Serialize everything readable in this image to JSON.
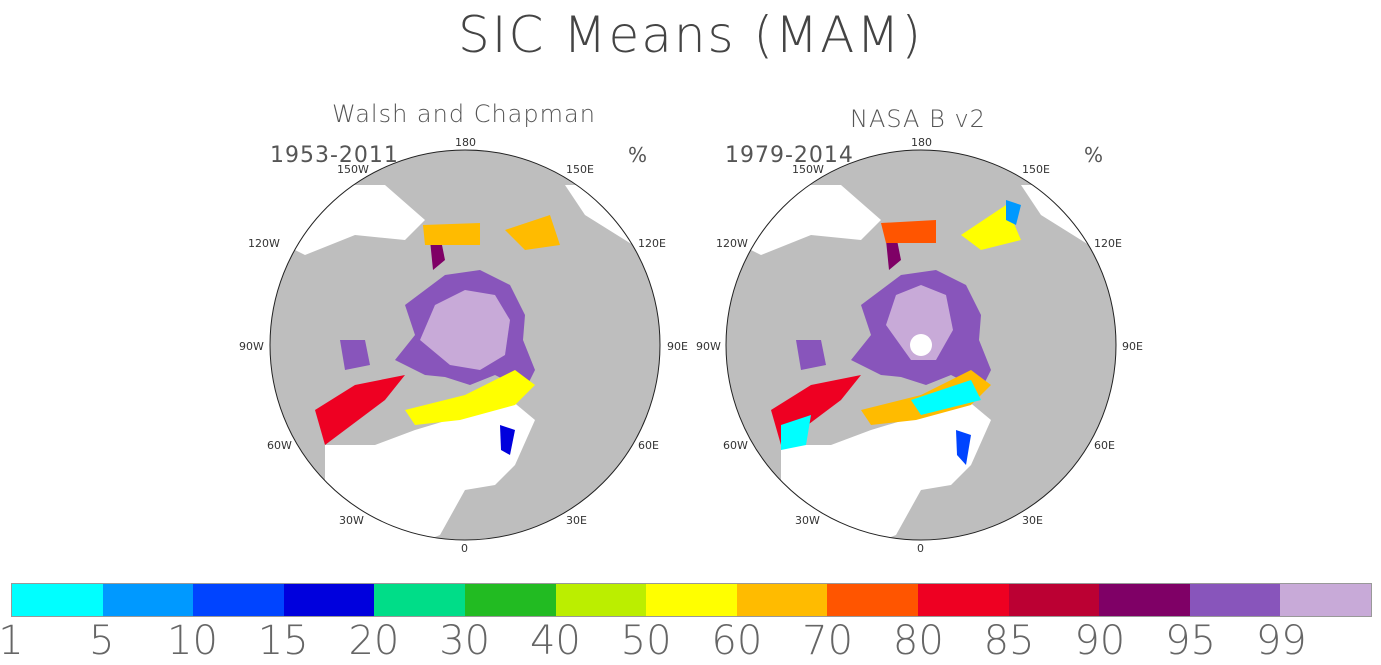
{
  "title": "SIC Means (MAM)",
  "panels": [
    {
      "name": "Walsh and Chapman",
      "period": "1953-2011",
      "unit": "%"
    },
    {
      "name": "NASA B v2",
      "period": "1979-2014",
      "unit": "%"
    }
  ],
  "longitude_labels": [
    "180",
    "150E",
    "120E",
    "90E",
    "60E",
    "30E",
    "0",
    "30W",
    "60W",
    "90W",
    "120W",
    "150W"
  ],
  "colorbar": {
    "labels": [
      "1",
      "5",
      "10",
      "15",
      "20",
      "30",
      "40",
      "50",
      "60",
      "70",
      "80",
      "85",
      "90",
      "95",
      "99"
    ],
    "colors": [
      "#00ffff",
      "#0099ff",
      "#0044ff",
      "#0000dd",
      "#00dd88",
      "#22bb22",
      "#bbee00",
      "#ffff00",
      "#ffbb00",
      "#ff5500",
      "#ee0022",
      "#bb0033",
      "#7f0066",
      "#8855bb",
      "#c8aad8"
    ]
  },
  "land_color": "#bebebe",
  "ocean_color": "#ffffff"
}
